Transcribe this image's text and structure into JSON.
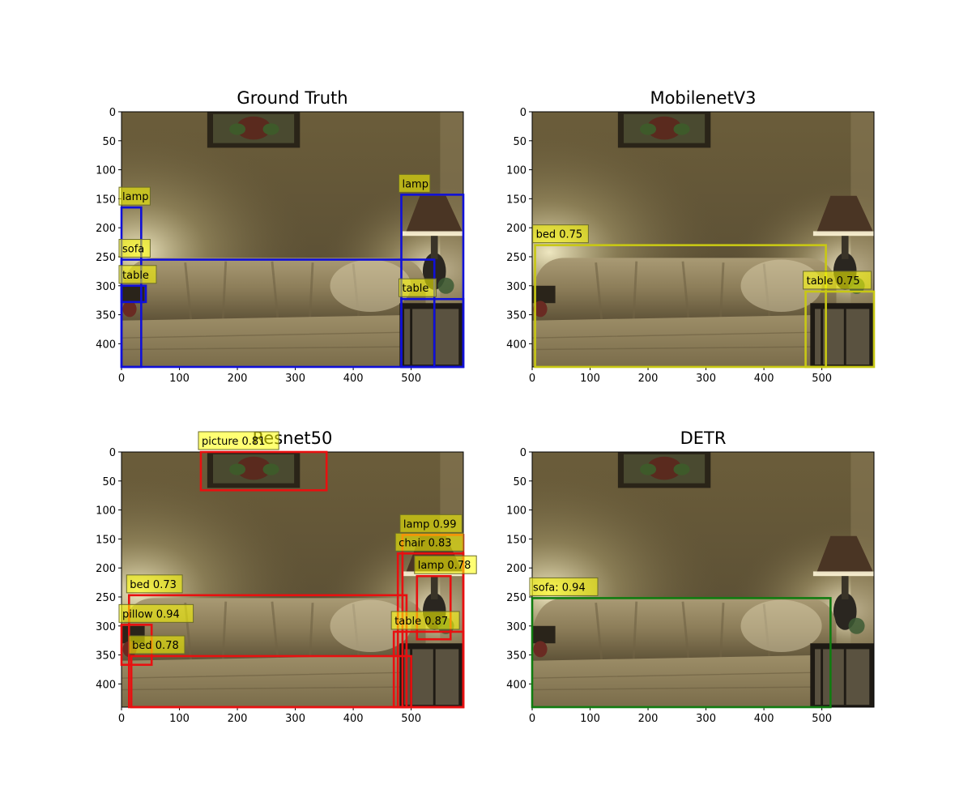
{
  "figure": {
    "panels": [
      {
        "title": "Ground Truth",
        "box_color": "#1010d8",
        "xticks": [
          "0",
          "100",
          "200",
          "300",
          "400",
          "500"
        ],
        "yticks": [
          "0",
          "50",
          "100",
          "150",
          "200",
          "250",
          "300",
          "350",
          "400"
        ],
        "boxes": [
          {
            "label": "lamp",
            "x1": 0,
            "y1": 165,
            "x2": 34,
            "y2": 440
          },
          {
            "label": "sofa",
            "x1": 0,
            "y1": 255,
            "x2": 540,
            "y2": 440
          },
          {
            "label": "table",
            "x1": 0,
            "y1": 300,
            "x2": 42,
            "y2": 328
          },
          {
            "label": "lamp",
            "x1": 483,
            "y1": 143,
            "x2": 590,
            "y2": 440
          },
          {
            "label": "table",
            "x1": 483,
            "y1": 323,
            "x2": 590,
            "y2": 440
          }
        ]
      },
      {
        "title": "MobilenetV3",
        "box_color": "#c8c814",
        "xticks": [
          "0",
          "100",
          "200",
          "300",
          "400",
          "500"
        ],
        "yticks": [
          "0",
          "50",
          "100",
          "150",
          "200",
          "250",
          "300",
          "350",
          "400"
        ],
        "boxes": [
          {
            "label": "bed 0.75",
            "x1": 5,
            "y1": 230,
            "x2": 507,
            "y2": 440
          },
          {
            "label": "table 0.75",
            "x1": 472,
            "y1": 310,
            "x2": 590,
            "y2": 440
          }
        ]
      },
      {
        "title": "Resnet50",
        "box_color": "#e81010",
        "xticks": [
          "0",
          "100",
          "200",
          "300",
          "400",
          "500"
        ],
        "yticks": [
          "0",
          "50",
          "100",
          "150",
          "200",
          "250",
          "300",
          "350",
          "400"
        ],
        "boxes": [
          {
            "label": "picture 0.81",
            "x1": 137,
            "y1": 0,
            "x2": 354,
            "y2": 66
          },
          {
            "label": "lamp 0.99",
            "x1": 485,
            "y1": 143,
            "x2": 590,
            "y2": 440
          },
          {
            "label": "chair 0.83",
            "x1": 477,
            "y1": 175,
            "x2": 590,
            "y2": 440
          },
          {
            "label": "lamp 0.78",
            "x1": 510,
            "y1": 214,
            "x2": 568,
            "y2": 323
          },
          {
            "label": "bed 0.73",
            "x1": 13,
            "y1": 247,
            "x2": 492,
            "y2": 440
          },
          {
            "label": "table 0.87",
            "x1": 470,
            "y1": 310,
            "x2": 590,
            "y2": 440
          },
          {
            "label": "pillow 0.94",
            "x1": 0,
            "y1": 298,
            "x2": 52,
            "y2": 367
          },
          {
            "label": "bed 0.78",
            "x1": 17,
            "y1": 352,
            "x2": 500,
            "y2": 440
          }
        ]
      },
      {
        "title": "DETR",
        "box_color": "#107c10",
        "xticks": [
          "0",
          "100",
          "200",
          "300",
          "400",
          "500"
        ],
        "yticks": [
          "0",
          "50",
          "100",
          "150",
          "200",
          "250",
          "300",
          "350",
          "400"
        ],
        "boxes": [
          {
            "label": "sofa: 0.94",
            "x1": 0,
            "y1": 252,
            "x2": 515,
            "y2": 440
          }
        ]
      }
    ]
  }
}
